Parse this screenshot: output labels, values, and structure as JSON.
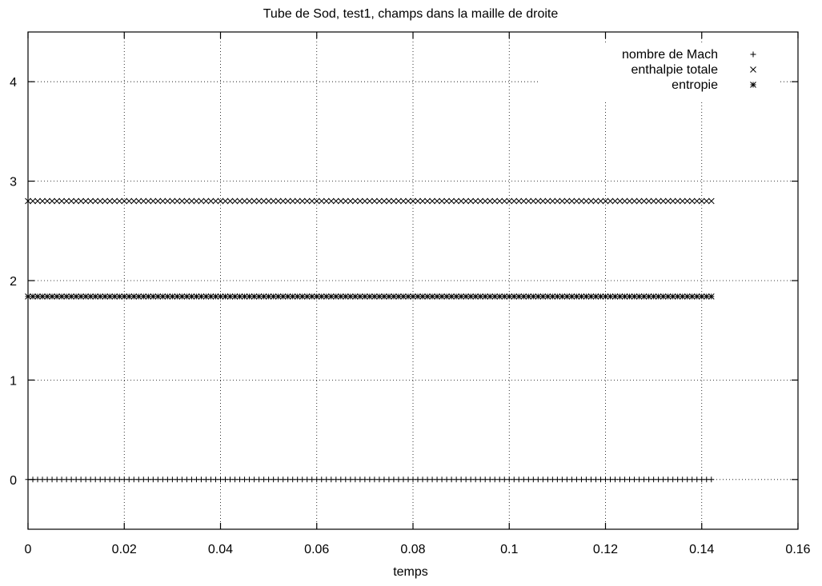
{
  "chart_data": {
    "type": "scatter",
    "title": "Tube de Sod, test1, champs dans la maille de droite",
    "xlabel": "temps",
    "ylabel": "",
    "xlim": [
      0,
      0.16
    ],
    "ylim": [
      -0.5,
      4.5
    ],
    "xticks": [
      0,
      0.02,
      0.04,
      0.06,
      0.08,
      0.1,
      0.12,
      0.14,
      0.16
    ],
    "xtick_labels": [
      "0",
      "0.02",
      "0.04",
      "0.06",
      "0.08",
      "0.1",
      "0.12",
      "0.14",
      "0.16"
    ],
    "yticks": [
      0,
      1,
      2,
      3,
      4
    ],
    "ytick_labels": [
      "0",
      "1",
      "2",
      "3",
      "4"
    ],
    "grid": true,
    "legend_position": "top-right",
    "series": [
      {
        "name": "nombre de Mach",
        "marker": "plus",
        "x_start": 0,
        "x_end": 0.142,
        "n_points": 143,
        "y": 0
      },
      {
        "name": "enthalpie totale",
        "marker": "cross",
        "x_start": 0,
        "x_end": 0.142,
        "n_points": 143,
        "y": 2.8
      },
      {
        "name": "entropie",
        "marker": "star",
        "x_start": 0,
        "x_end": 0.142,
        "n_points": 143,
        "y": 1.84
      }
    ]
  }
}
